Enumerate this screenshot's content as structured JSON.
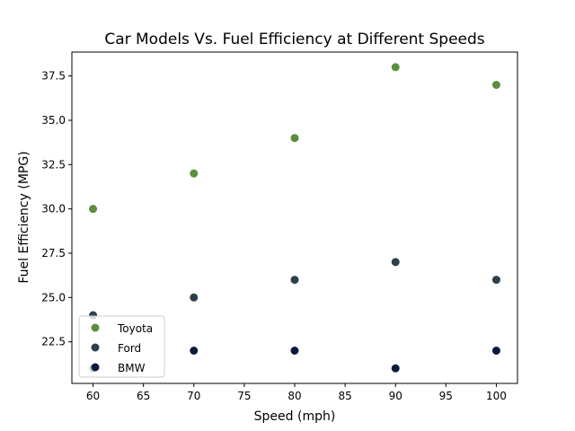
{
  "chart_data": {
    "type": "scatter",
    "title": "Car Models Vs. Fuel Efficiency at Different Speeds",
    "xlabel": "Speed (mph)",
    "ylabel": "Fuel Efficiency (MPG)",
    "xlim": [
      57.9,
      102.1
    ],
    "ylim": [
      20.15,
      38.85
    ],
    "xticks": [
      60,
      65,
      70,
      75,
      80,
      85,
      90,
      95,
      100
    ],
    "yticks": [
      22.5,
      25.0,
      27.5,
      30.0,
      32.5,
      35.0,
      37.5
    ],
    "grid": false,
    "legend_position": "lower-left",
    "x": [
      60,
      70,
      80,
      90,
      100
    ],
    "series": [
      {
        "name": "Toyota",
        "color": "#5b8e3e",
        "values": [
          30,
          32,
          34,
          38,
          37
        ]
      },
      {
        "name": "Ford",
        "color": "#2e3f4c",
        "values": [
          24,
          25,
          26,
          27,
          26
        ]
      },
      {
        "name": "BMW",
        "color": "#0c1a3e",
        "values": [
          21,
          22,
          22,
          21,
          22
        ]
      }
    ]
  }
}
